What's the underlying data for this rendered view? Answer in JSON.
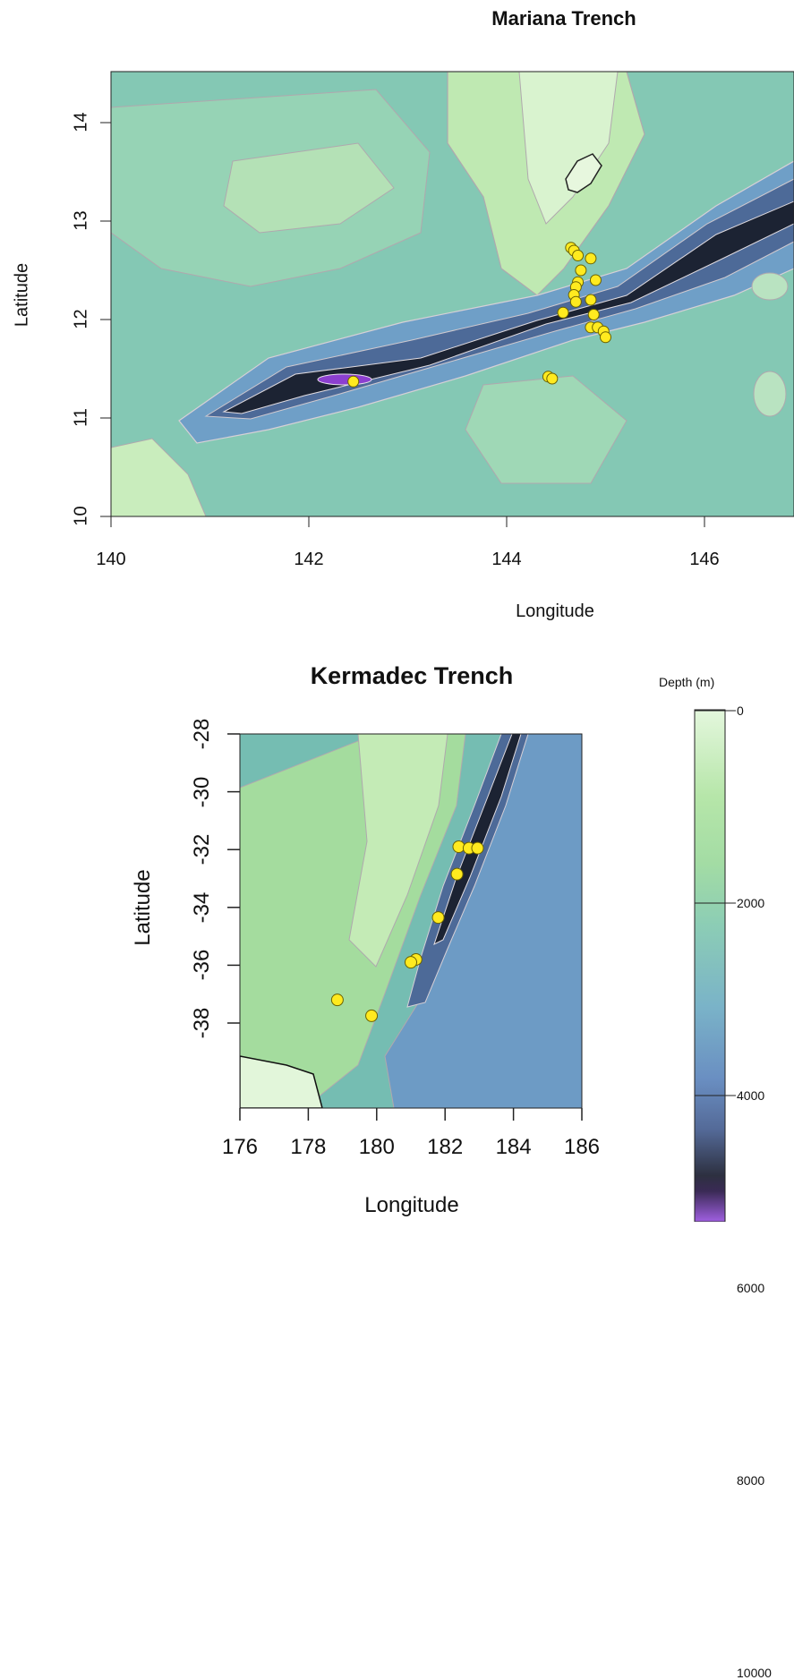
{
  "mariana": {
    "title": "Mariana Trench",
    "xlabel": "Longitude",
    "ylabel": "Latitude",
    "xticks": [
      "140",
      "142",
      "144",
      "146"
    ],
    "yticks": [
      "10",
      "11",
      "12",
      "13",
      "14"
    ]
  },
  "kermadec": {
    "title": "Kermadec Trench",
    "xlabel": "Longitude",
    "ylabel": "Latitude",
    "xticks": [
      "176",
      "178",
      "180",
      "182",
      "184",
      "186"
    ],
    "yticks": [
      "-28",
      "-30",
      "-32",
      "-34",
      "-36",
      "-38"
    ]
  },
  "legend": {
    "title": "Depth (m)",
    "ticks": [
      "0",
      "2000",
      "4000",
      "6000",
      "8000",
      "10000"
    ]
  },
  "colors": {
    "shallow": "#dff5d8",
    "mid_green": "#a9e29e",
    "teal": "#7ec0b6",
    "blue": "#6f9fc7",
    "deep_blue": "#4d6a98",
    "trench": "#1c2333",
    "deepest": "#8c3fd0",
    "contour": "#b0a8ae",
    "sample": "#ffea1f"
  },
  "chart_data": [
    {
      "type": "scatter",
      "title": "Mariana Trench",
      "xlabel": "Longitude",
      "ylabel": "Latitude",
      "xlim": [
        140,
        147
      ],
      "ylim": [
        10,
        14.5
      ],
      "points": [
        [
          142.45,
          11.37
        ],
        [
          144.42,
          11.42
        ],
        [
          144.46,
          11.4
        ],
        [
          144.65,
          12.73
        ],
        [
          144.68,
          12.7
        ],
        [
          144.72,
          12.65
        ],
        [
          144.85,
          12.62
        ],
        [
          144.75,
          12.5
        ],
        [
          144.9,
          12.4
        ],
        [
          144.72,
          12.38
        ],
        [
          144.7,
          12.33
        ],
        [
          144.68,
          12.25
        ],
        [
          144.85,
          12.2
        ],
        [
          144.7,
          12.18
        ],
        [
          144.57,
          12.07
        ],
        [
          144.88,
          12.05
        ],
        [
          144.85,
          11.92
        ],
        [
          144.92,
          11.92
        ],
        [
          144.98,
          11.88
        ],
        [
          145.0,
          11.82
        ]
      ]
    },
    {
      "type": "scatter",
      "title": "Kermadec Trench",
      "xlabel": "Longitude",
      "ylabel": "Latitude",
      "xlim": [
        176,
        186
      ],
      "ylim": [
        -39,
        -28
      ],
      "points": [
        [
          182.4,
          -31.9
        ],
        [
          182.7,
          -31.95
        ],
        [
          182.95,
          -31.95
        ],
        [
          182.35,
          -32.85
        ],
        [
          181.8,
          -34.35
        ],
        [
          181.15,
          -35.8
        ],
        [
          181.0,
          -35.9
        ],
        [
          178.85,
          -37.2
        ],
        [
          179.85,
          -37.75
        ]
      ]
    }
  ]
}
